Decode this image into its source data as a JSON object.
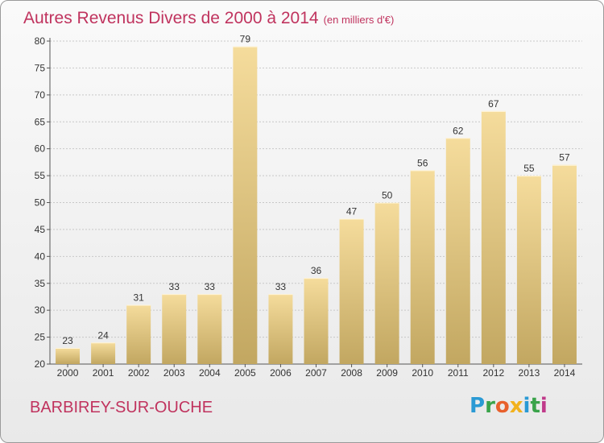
{
  "title": "Autres Revenus Divers de 2000 à 2014",
  "unit": "(en milliers d'€)",
  "commune": "BARBIREY-SUR-OUCHE",
  "logo": {
    "text": "Proxiti",
    "colors": [
      "#2a9ad4",
      "#3aa34a",
      "#e8602c",
      "#f2b21e",
      "#2a9ad4",
      "#3aa34a",
      "#c03a8a"
    ]
  },
  "colors": {
    "title": "#c0335e",
    "bar_light": "#f5dc9c",
    "bar_dark": "#c2a761"
  },
  "chart_data": {
    "type": "bar",
    "categories": [
      "2000",
      "2001",
      "2002",
      "2003",
      "2004",
      "2005",
      "2006",
      "2007",
      "2008",
      "2009",
      "2010",
      "2011",
      "2012",
      "2013",
      "2014"
    ],
    "values": [
      23,
      24,
      31,
      33,
      33,
      79,
      33,
      36,
      47,
      50,
      56,
      62,
      67,
      55,
      57
    ],
    "ylim": [
      20,
      80
    ],
    "yticks": [
      20,
      25,
      30,
      35,
      40,
      45,
      50,
      55,
      60,
      65,
      70,
      75,
      80
    ],
    "grid": true,
    "legend": "none"
  }
}
